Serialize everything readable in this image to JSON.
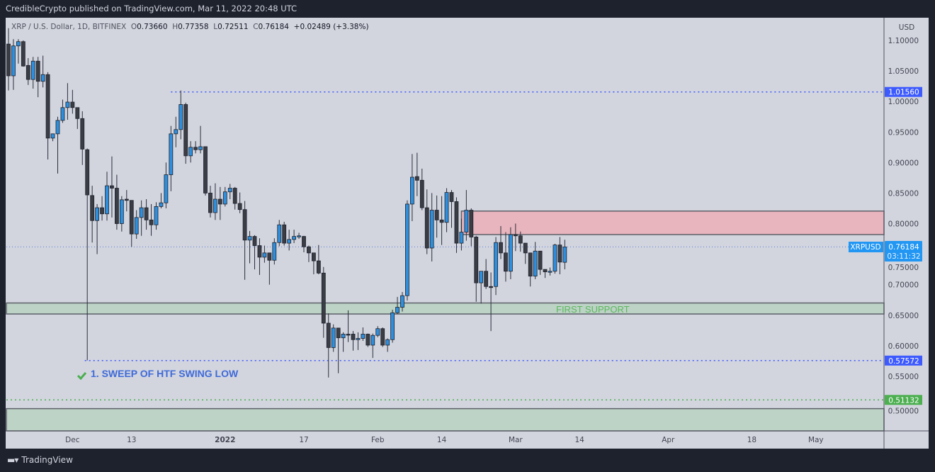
{
  "header": {
    "published": "CredibleCrypto published on TradingView.com, Mar 11, 2022 20:48 UTC"
  },
  "legend": {
    "symbol": "XRP / U.S. Dollar, 1D, BITFINEX",
    "o_label": "O",
    "o": "0.73660",
    "h_label": "H",
    "h": "0.77358",
    "l_label": "L",
    "l": "0.72511",
    "c_label": "C",
    "c": "0.76184",
    "change": "+0.02489 (+3.38%)"
  },
  "footer": {
    "brand": "TradingView",
    "logo": "TV"
  },
  "colors": {
    "up": "#2e8fdd",
    "down": "#3b3d45",
    "zone_red": "#e8b4bd",
    "zone_green": "#bcd3c6",
    "blue_line": "#3d5afe",
    "green_label": "#4caf50",
    "price_label": "#2196f3"
  },
  "chart_data": {
    "type": "candlestick",
    "title": "XRP / U.S. Dollar, 1D, BITFINEX",
    "currency": "USD",
    "ylim": [
      0.465,
      1.135
    ],
    "y_ticks": [
      "1.10000",
      "1.05000",
      "1.00000",
      "0.95000",
      "0.90000",
      "0.85000",
      "0.80000",
      "0.75000",
      "0.70000",
      "0.65000",
      "0.60000",
      "0.55000",
      "0.50000"
    ],
    "x_ticks": [
      {
        "label": "Dec",
        "day": 13,
        "bold": false
      },
      {
        "label": "13",
        "day": 25,
        "bold": false
      },
      {
        "label": "2022",
        "day": 44,
        "bold": true
      },
      {
        "label": "17",
        "day": 60,
        "bold": false
      },
      {
        "label": "Feb",
        "day": 75,
        "bold": false
      },
      {
        "label": "14",
        "day": 88,
        "bold": false
      },
      {
        "label": "Mar",
        "day": 103,
        "bold": false
      },
      {
        "label": "14",
        "day": 116,
        "bold": false
      },
      {
        "label": "Apr",
        "day": 134,
        "bold": false
      },
      {
        "label": "18",
        "day": 151,
        "bold": false
      },
      {
        "label": "May",
        "day": 164,
        "bold": false
      }
    ],
    "start_date": "2021-11-18",
    "candles_ohlc": [
      [
        1.094,
        1.12,
        1.018,
        1.042
      ],
      [
        1.042,
        1.102,
        1.019,
        1.091
      ],
      [
        1.091,
        1.102,
        1.062,
        1.098
      ],
      [
        1.098,
        1.1,
        1.057,
        1.058
      ],
      [
        1.059,
        1.071,
        1.027,
        1.036
      ],
      [
        1.036,
        1.073,
        1.021,
        1.066
      ],
      [
        1.066,
        1.073,
        1.007,
        1.033
      ],
      [
        1.033,
        1.075,
        1.023,
        1.044
      ],
      [
        1.044,
        1.048,
        0.905,
        0.94
      ],
      [
        0.94,
        0.947,
        0.935,
        0.947
      ],
      [
        0.947,
        0.975,
        0.882,
        0.969
      ],
      [
        0.969,
        1.003,
        0.965,
        0.99
      ],
      [
        0.99,
        1.03,
        0.97,
        0.999
      ],
      [
        0.999,
        1.019,
        0.98,
        0.99
      ],
      [
        0.99,
        0.99,
        0.955,
        0.972
      ],
      [
        0.972,
        0.984,
        0.896,
        0.922
      ],
      [
        0.921,
        0.923,
        0.576,
        0.847
      ],
      [
        0.846,
        0.862,
        0.769,
        0.805
      ],
      [
        0.805,
        0.832,
        0.75,
        0.826
      ],
      [
        0.826,
        0.845,
        0.805,
        0.816
      ],
      [
        0.816,
        0.885,
        0.805,
        0.862
      ],
      [
        0.862,
        0.91,
        0.81,
        0.858
      ],
      [
        0.858,
        0.88,
        0.79,
        0.8
      ],
      [
        0.8,
        0.845,
        0.787,
        0.839
      ],
      [
        0.84,
        0.855,
        0.82,
        0.838
      ],
      [
        0.838,
        0.838,
        0.762,
        0.783
      ],
      [
        0.783,
        0.822,
        0.775,
        0.81
      ],
      [
        0.81,
        0.838,
        0.78,
        0.826
      ],
      [
        0.826,
        0.84,
        0.79,
        0.806
      ],
      [
        0.806,
        0.832,
        0.78,
        0.798
      ],
      [
        0.798,
        0.835,
        0.79,
        0.828
      ],
      [
        0.828,
        0.85,
        0.825,
        0.834
      ],
      [
        0.834,
        0.9,
        0.825,
        0.88
      ],
      [
        0.88,
        0.96,
        0.853,
        0.947
      ],
      [
        0.947,
        0.975,
        0.925,
        0.954
      ],
      [
        0.954,
        1.018,
        0.938,
        0.995
      ],
      [
        0.995,
        0.998,
        0.898,
        0.911
      ],
      [
        0.911,
        0.935,
        0.9,
        0.925
      ],
      [
        0.925,
        0.935,
        0.915,
        0.921
      ],
      [
        0.921,
        0.96,
        0.915,
        0.926
      ],
      [
        0.926,
        0.926,
        0.846,
        0.85
      ],
      [
        0.85,
        0.862,
        0.81,
        0.818
      ],
      [
        0.818,
        0.866,
        0.806,
        0.84
      ],
      [
        0.84,
        0.86,
        0.806,
        0.832
      ],
      [
        0.832,
        0.86,
        0.828,
        0.852
      ],
      [
        0.852,
        0.865,
        0.84,
        0.858
      ],
      [
        0.858,
        0.86,
        0.823,
        0.833
      ],
      [
        0.833,
        0.851,
        0.817,
        0.823
      ],
      [
        0.823,
        0.837,
        0.708,
        0.773
      ],
      [
        0.773,
        0.788,
        0.735,
        0.779
      ],
      [
        0.779,
        0.781,
        0.725,
        0.764
      ],
      [
        0.764,
        0.776,
        0.716,
        0.745
      ],
      [
        0.745,
        0.764,
        0.736,
        0.752
      ],
      [
        0.752,
        0.752,
        0.7,
        0.74
      ],
      [
        0.74,
        0.776,
        0.733,
        0.769
      ],
      [
        0.769,
        0.806,
        0.763,
        0.798
      ],
      [
        0.798,
        0.803,
        0.764,
        0.768
      ],
      [
        0.768,
        0.79,
        0.756,
        0.774
      ],
      [
        0.774,
        0.79,
        0.768,
        0.779
      ],
      [
        0.779,
        0.785,
        0.775,
        0.78
      ],
      [
        0.779,
        0.78,
        0.753,
        0.762
      ],
      [
        0.762,
        0.764,
        0.737,
        0.752
      ],
      [
        0.752,
        0.752,
        0.717,
        0.739
      ],
      [
        0.739,
        0.765,
        0.717,
        0.719
      ],
      [
        0.719,
        0.729,
        0.613,
        0.637
      ],
      [
        0.637,
        0.653,
        0.548,
        0.597
      ],
      [
        0.597,
        0.635,
        0.59,
        0.629
      ],
      [
        0.629,
        0.629,
        0.555,
        0.613
      ],
      [
        0.613,
        0.622,
        0.59,
        0.619
      ],
      [
        0.619,
        0.658,
        0.606,
        0.618
      ],
      [
        0.619,
        0.624,
        0.592,
        0.61
      ],
      [
        0.61,
        0.622,
        0.593,
        0.612
      ],
      [
        0.612,
        0.63,
        0.608,
        0.619
      ],
      [
        0.619,
        0.62,
        0.598,
        0.601
      ],
      [
        0.601,
        0.62,
        0.58,
        0.617
      ],
      [
        0.617,
        0.632,
        0.614,
        0.628
      ],
      [
        0.628,
        0.63,
        0.598,
        0.601
      ],
      [
        0.601,
        0.612,
        0.59,
        0.61
      ],
      [
        0.61,
        0.659,
        0.605,
        0.654
      ],
      [
        0.654,
        0.68,
        0.652,
        0.663
      ],
      [
        0.663,
        0.688,
        0.656,
        0.682
      ],
      [
        0.682,
        0.838,
        0.674,
        0.832
      ],
      [
        0.832,
        0.914,
        0.804,
        0.876
      ],
      [
        0.877,
        0.916,
        0.845,
        0.871
      ],
      [
        0.871,
        0.89,
        0.822,
        0.826
      ],
      [
        0.826,
        0.856,
        0.75,
        0.76
      ],
      [
        0.76,
        0.85,
        0.738,
        0.822
      ],
      [
        0.822,
        0.846,
        0.777,
        0.806
      ],
      [
        0.806,
        0.845,
        0.765,
        0.802
      ],
      [
        0.802,
        0.858,
        0.786,
        0.851
      ],
      [
        0.851,
        0.855,
        0.793,
        0.836
      ],
      [
        0.836,
        0.843,
        0.752,
        0.768
      ],
      [
        0.768,
        0.808,
        0.756,
        0.786
      ],
      [
        0.786,
        0.855,
        0.772,
        0.822
      ],
      [
        0.822,
        0.825,
        0.763,
        0.778
      ],
      [
        0.778,
        0.78,
        0.672,
        0.703
      ],
      [
        0.703,
        0.722,
        0.669,
        0.722
      ],
      [
        0.722,
        0.742,
        0.693,
        0.697
      ],
      [
        0.697,
        0.72,
        0.624,
        0.696
      ],
      [
        0.697,
        0.778,
        0.683,
        0.769
      ],
      [
        0.769,
        0.796,
        0.742,
        0.752
      ],
      [
        0.752,
        0.786,
        0.705,
        0.722
      ],
      [
        0.722,
        0.794,
        0.709,
        0.782
      ],
      [
        0.782,
        0.8,
        0.755,
        0.78
      ],
      [
        0.78,
        0.787,
        0.754,
        0.768
      ],
      [
        0.768,
        0.768,
        0.734,
        0.752
      ],
      [
        0.752,
        0.752,
        0.697,
        0.714
      ],
      [
        0.714,
        0.77,
        0.709,
        0.755
      ],
      [
        0.755,
        0.755,
        0.716,
        0.725
      ],
      [
        0.725,
        0.725,
        0.711,
        0.721
      ],
      [
        0.721,
        0.728,
        0.715,
        0.722
      ],
      [
        0.722,
        0.767,
        0.718,
        0.765
      ],
      [
        0.765,
        0.778,
        0.717,
        0.737
      ],
      [
        0.7366,
        0.77358,
        0.72511,
        0.76184
      ]
    ],
    "zones": [
      {
        "name": "resistance-zone",
        "from_day": 92,
        "top": 0.8205,
        "bottom": 0.782,
        "color": "#e8b4bd"
      },
      {
        "name": "first-support-zone",
        "from_day": 0,
        "top": 0.67,
        "bottom": 0.652,
        "color": "#bcd3c6",
        "label": "FIRST SUPPORT"
      },
      {
        "name": "lower-support-zone",
        "from_day": 0,
        "top": 0.497,
        "bottom": 0.46,
        "color": "#bcd3c6"
      }
    ],
    "horizontal_lines": [
      {
        "name": "swing-high-line",
        "price": 1.0156,
        "label": "1.01560",
        "from_day": 33,
        "color": "#3d5afe"
      },
      {
        "name": "swing-low-line",
        "price": 0.57572,
        "label": "0.57572",
        "from_day": 15.5,
        "color": "#3d5afe"
      },
      {
        "name": "support-line",
        "price": 0.51132,
        "label": "0.51132",
        "from_day": -1,
        "color": "#4caf50"
      }
    ],
    "last_price": {
      "symbol": "XRPUSD",
      "price": "0.76184",
      "value": 0.76184,
      "countdown": "03:11:32"
    },
    "annotations": [
      {
        "text": "1. SWEEP OF HTF SWING LOW",
        "icon": "check-icon"
      }
    ]
  }
}
